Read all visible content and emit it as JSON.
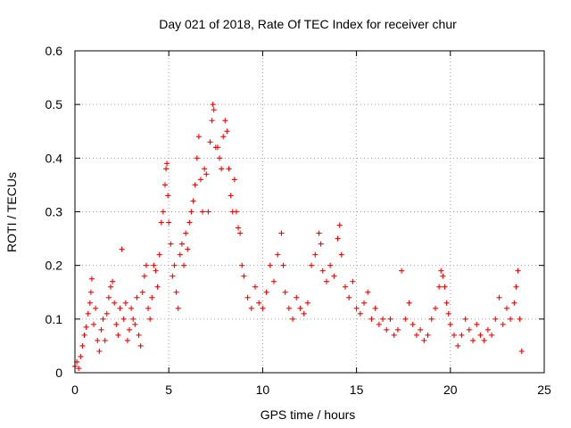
{
  "chart_data": {
    "type": "scatter",
    "title": "Day 021 of 2018, Rate Of TEC Index for receiver chur",
    "xlabel": "GPS time / hours",
    "ylabel": "ROTI / TECUs",
    "xlim": [
      0,
      25
    ],
    "ylim": [
      0,
      0.6
    ],
    "x_ticks": [
      0,
      5,
      10,
      15,
      20,
      25
    ],
    "x_tick_labels": [
      "0",
      "5",
      "10",
      "15",
      "20",
      "25"
    ],
    "y_ticks": [
      0,
      0.1,
      0.2,
      0.3,
      0.4,
      0.5,
      0.6
    ],
    "y_tick_labels": [
      "0",
      "0.1",
      "0.2",
      "0.3",
      "0.4",
      "0.5",
      "0.6"
    ],
    "grid": true,
    "marker": "+",
    "color": "#ff0000",
    "series": [
      {
        "values": [
          [
            0.0,
            0.012
          ],
          [
            0.1,
            0.02
          ],
          [
            0.2,
            0.008
          ],
          [
            0.3,
            0.03
          ],
          [
            0.4,
            0.05
          ],
          [
            0.5,
            0.07
          ],
          [
            0.6,
            0.085
          ],
          [
            0.7,
            0.11
          ],
          [
            0.8,
            0.13
          ],
          [
            0.85,
            0.15
          ],
          [
            0.9,
            0.175
          ],
          [
            1.0,
            0.09
          ],
          [
            1.1,
            0.12
          ],
          [
            1.2,
            0.06
          ],
          [
            1.3,
            0.04
          ],
          [
            1.4,
            0.08
          ],
          [
            1.5,
            0.1
          ],
          [
            1.6,
            0.06
          ],
          [
            1.7,
            0.11
          ],
          [
            1.8,
            0.14
          ],
          [
            1.9,
            0.16
          ],
          [
            2.0,
            0.17
          ],
          [
            2.1,
            0.13
          ],
          [
            2.2,
            0.09
          ],
          [
            2.3,
            0.07
          ],
          [
            2.4,
            0.12
          ],
          [
            2.5,
            0.23
          ],
          [
            2.6,
            0.1
          ],
          [
            2.7,
            0.13
          ],
          [
            2.8,
            0.06
          ],
          [
            2.9,
            0.08
          ],
          [
            3.0,
            0.12
          ],
          [
            3.1,
            0.1
          ],
          [
            3.2,
            0.09
          ],
          [
            3.3,
            0.14
          ],
          [
            3.4,
            0.07
          ],
          [
            3.5,
            0.05
          ],
          [
            3.6,
            0.15
          ],
          [
            3.7,
            0.18
          ],
          [
            3.8,
            0.2
          ],
          [
            3.9,
            0.12
          ],
          [
            4.0,
            0.1
          ],
          [
            4.1,
            0.14
          ],
          [
            4.2,
            0.2
          ],
          [
            4.3,
            0.19
          ],
          [
            4.4,
            0.16
          ],
          [
            4.5,
            0.22
          ],
          [
            4.6,
            0.28
          ],
          [
            4.7,
            0.3
          ],
          [
            4.8,
            0.35
          ],
          [
            4.85,
            0.38
          ],
          [
            4.9,
            0.39
          ],
          [
            4.95,
            0.33
          ],
          [
            5.0,
            0.28
          ],
          [
            5.1,
            0.24
          ],
          [
            5.2,
            0.18
          ],
          [
            5.3,
            0.2
          ],
          [
            5.4,
            0.15
          ],
          [
            5.5,
            0.12
          ],
          [
            5.6,
            0.22
          ],
          [
            5.7,
            0.24
          ],
          [
            5.8,
            0.2
          ],
          [
            5.9,
            0.26
          ],
          [
            6.0,
            0.23
          ],
          [
            6.1,
            0.28
          ],
          [
            6.2,
            0.3
          ],
          [
            6.3,
            0.32
          ],
          [
            6.4,
            0.35
          ],
          [
            6.5,
            0.4
          ],
          [
            6.6,
            0.44
          ],
          [
            6.7,
            0.36
          ],
          [
            6.8,
            0.3
          ],
          [
            6.9,
            0.38
          ],
          [
            7.0,
            0.37
          ],
          [
            7.1,
            0.3
          ],
          [
            7.2,
            0.43
          ],
          [
            7.3,
            0.47
          ],
          [
            7.35,
            0.5
          ],
          [
            7.4,
            0.49
          ],
          [
            7.5,
            0.42
          ],
          [
            7.6,
            0.42
          ],
          [
            7.7,
            0.4
          ],
          [
            7.8,
            0.38
          ],
          [
            7.9,
            0.44
          ],
          [
            8.0,
            0.47
          ],
          [
            8.1,
            0.45
          ],
          [
            8.2,
            0.38
          ],
          [
            8.3,
            0.33
          ],
          [
            8.4,
            0.3
          ],
          [
            8.5,
            0.36
          ],
          [
            8.6,
            0.3
          ],
          [
            8.7,
            0.27
          ],
          [
            8.8,
            0.26
          ],
          [
            8.9,
            0.2
          ],
          [
            9.0,
            0.18
          ],
          [
            9.2,
            0.14
          ],
          [
            9.4,
            0.12
          ],
          [
            9.6,
            0.16
          ],
          [
            9.8,
            0.13
          ],
          [
            10.0,
            0.12
          ],
          [
            10.2,
            0.15
          ],
          [
            10.4,
            0.2
          ],
          [
            10.6,
            0.17
          ],
          [
            10.8,
            0.22
          ],
          [
            11.0,
            0.26
          ],
          [
            11.1,
            0.2
          ],
          [
            11.2,
            0.15
          ],
          [
            11.4,
            0.12
          ],
          [
            11.6,
            0.1
          ],
          [
            11.8,
            0.14
          ],
          [
            12.0,
            0.12
          ],
          [
            12.2,
            0.11
          ],
          [
            12.4,
            0.13
          ],
          [
            12.6,
            0.2
          ],
          [
            12.8,
            0.22
          ],
          [
            13.0,
            0.26
          ],
          [
            13.1,
            0.24
          ],
          [
            13.2,
            0.19
          ],
          [
            13.4,
            0.17
          ],
          [
            13.6,
            0.2
          ],
          [
            13.8,
            0.18
          ],
          [
            14.0,
            0.25
          ],
          [
            14.1,
            0.275
          ],
          [
            14.2,
            0.22
          ],
          [
            14.4,
            0.16
          ],
          [
            14.6,
            0.14
          ],
          [
            14.8,
            0.17
          ],
          [
            15.0,
            0.12
          ],
          [
            15.2,
            0.11
          ],
          [
            15.4,
            0.13
          ],
          [
            15.6,
            0.15
          ],
          [
            15.8,
            0.1
          ],
          [
            16.0,
            0.12
          ],
          [
            16.2,
            0.09
          ],
          [
            16.4,
            0.1
          ],
          [
            16.6,
            0.08
          ],
          [
            16.8,
            0.1
          ],
          [
            17.0,
            0.07
          ],
          [
            17.2,
            0.08
          ],
          [
            17.4,
            0.19
          ],
          [
            17.6,
            0.1
          ],
          [
            17.8,
            0.13
          ],
          [
            18.0,
            0.09
          ],
          [
            18.2,
            0.07
          ],
          [
            18.4,
            0.08
          ],
          [
            18.6,
            0.06
          ],
          [
            18.8,
            0.07
          ],
          [
            19.0,
            0.1
          ],
          [
            19.2,
            0.12
          ],
          [
            19.4,
            0.16
          ],
          [
            19.5,
            0.19
          ],
          [
            19.6,
            0.18
          ],
          [
            19.7,
            0.16
          ],
          [
            19.8,
            0.13
          ],
          [
            19.9,
            0.11
          ],
          [
            20.0,
            0.09
          ],
          [
            20.2,
            0.07
          ],
          [
            20.4,
            0.05
          ],
          [
            20.6,
            0.07
          ],
          [
            20.8,
            0.1
          ],
          [
            21.0,
            0.08
          ],
          [
            21.2,
            0.06
          ],
          [
            21.4,
            0.09
          ],
          [
            21.6,
            0.07
          ],
          [
            21.8,
            0.06
          ],
          [
            22.0,
            0.08
          ],
          [
            22.2,
            0.07
          ],
          [
            22.4,
            0.1
          ],
          [
            22.6,
            0.14
          ],
          [
            22.8,
            0.09
          ],
          [
            23.0,
            0.12
          ],
          [
            23.2,
            0.1
          ],
          [
            23.4,
            0.13
          ],
          [
            23.5,
            0.16
          ],
          [
            23.6,
            0.19
          ],
          [
            23.7,
            0.1
          ],
          [
            23.8,
            0.04
          ]
        ]
      }
    ]
  }
}
